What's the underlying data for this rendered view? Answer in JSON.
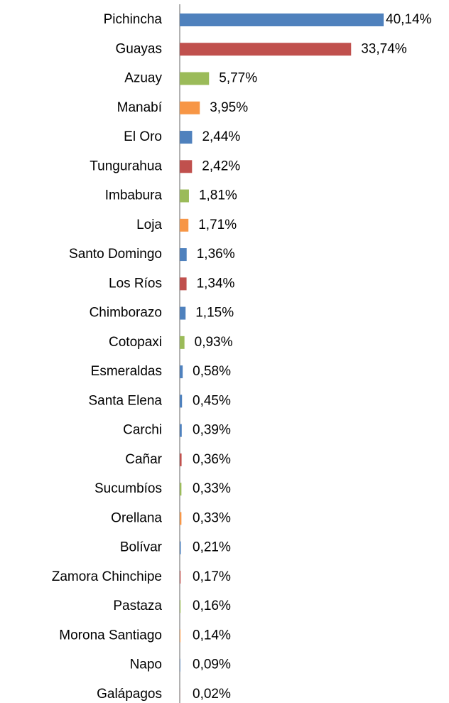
{
  "chart_data": {
    "type": "bar",
    "orientation": "horizontal",
    "categories": [
      "Pichincha",
      "Guayas",
      "Azuay",
      "Manabí",
      "El Oro",
      "Tungurahua",
      "Imbabura",
      "Loja",
      "Santo Domingo",
      "Los Ríos",
      "Chimborazo",
      "Cotopaxi",
      "Esmeraldas",
      "Santa Elena",
      "Carchi",
      "Cañar",
      "Sucumbíos",
      "Orellana",
      "Bolívar",
      "Zamora Chinchipe",
      "Pastaza",
      "Morona Santiago",
      "Napo",
      "Galápagos"
    ],
    "values": [
      40.14,
      33.74,
      5.77,
      3.95,
      2.44,
      2.42,
      1.81,
      1.71,
      1.36,
      1.34,
      1.15,
      0.93,
      0.58,
      0.45,
      0.39,
      0.36,
      0.33,
      0.33,
      0.21,
      0.17,
      0.16,
      0.14,
      0.09,
      0.02
    ],
    "value_labels": [
      "40,14%",
      "33,74%",
      "5,77%",
      "3,95%",
      "2,44%",
      "2,42%",
      "1,81%",
      "1,71%",
      "1,36%",
      "1,34%",
      "1,15%",
      "0,93%",
      "0,58%",
      "0,45%",
      "0,39%",
      "0,36%",
      "0,33%",
      "0,33%",
      "0,21%",
      "0,17%",
      "0,16%",
      "0,14%",
      "0,09%",
      "0,02%"
    ],
    "colors": [
      "#4f81bd",
      "#c0504d",
      "#9bbb59",
      "#f79646",
      "#4f81bd",
      "#c0504d",
      "#9bbb59",
      "#f79646",
      "#4f81bd",
      "#c0504d",
      "#4f81bd",
      "#9bbb59",
      "#4f81bd",
      "#4f81bd",
      "#4f81bd",
      "#c0504d",
      "#9bbb59",
      "#f79646",
      "#4f81bd",
      "#c0504d",
      "#9bbb59",
      "#f79646",
      "#4f81bd",
      "#c0504d"
    ]
  }
}
